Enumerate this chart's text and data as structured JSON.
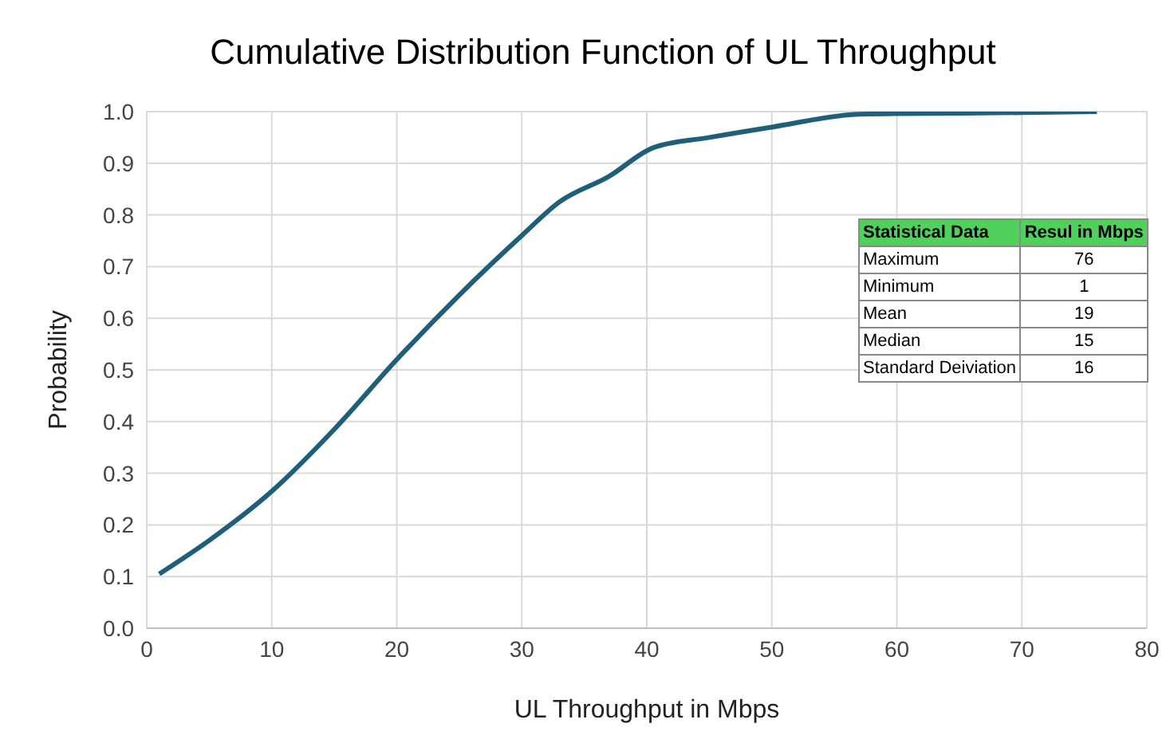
{
  "chart_data": {
    "type": "line",
    "title": "Cumulative Distribution Function of UL Throughput",
    "xlabel": "UL Throughput in Mbps",
    "ylabel": "Probability",
    "x": [
      1,
      5,
      10,
      15,
      20,
      25,
      30,
      33,
      37,
      40.5,
      45,
      50,
      57,
      60,
      70,
      76
    ],
    "series": [
      {
        "color": "#1f5f7a",
        "values": [
          0.105,
          0.17,
          0.265,
          0.385,
          0.52,
          0.645,
          0.76,
          0.825,
          0.875,
          0.93,
          0.95,
          0.97,
          0.995,
          0.996,
          0.998,
          1.0
        ]
      }
    ],
    "xlim": [
      0,
      80
    ],
    "xticks": [
      0,
      10,
      20,
      30,
      40,
      50,
      60,
      70,
      80
    ],
    "ylim": [
      0,
      1
    ],
    "yticks": [
      {
        "value": 0,
        "label": "0.0"
      },
      {
        "value": 0.1,
        "label": "0.1"
      },
      {
        "value": 0.2,
        "label": "0.2"
      },
      {
        "value": 0.3,
        "label": "0.3"
      },
      {
        "value": 0.4,
        "label": "0.4"
      },
      {
        "value": 0.5,
        "label": "0.5"
      },
      {
        "value": 0.6,
        "label": "0.6"
      },
      {
        "value": 0.7,
        "label": "0.7"
      },
      {
        "value": 0.8,
        "label": "0.8"
      },
      {
        "value": 0.9,
        "label": "0.9"
      },
      {
        "value": 1,
        "label": "1.0"
      }
    ],
    "grid": true,
    "marker": "none",
    "line_style": "solid",
    "legend": false,
    "annotations": [
      "Statistical Data",
      "Resul in Mbps",
      "Maximum",
      "76",
      "Minimum",
      "1",
      "Mean",
      "19",
      "Median",
      "15",
      "Standard Deiviation",
      "16"
    ]
  }
}
